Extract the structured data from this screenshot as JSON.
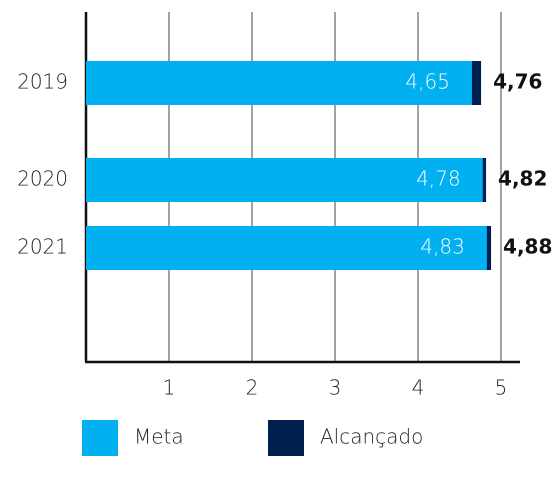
{
  "chart_data": {
    "type": "bar",
    "orientation": "horizontal",
    "categories": [
      "2019",
      "2020",
      "2021"
    ],
    "series": [
      {
        "name": "Meta",
        "color": "#00b0f0",
        "values": [
          4.65,
          4.78,
          4.83
        ],
        "value_labels": [
          "4,65",
          "4,78",
          "4,83"
        ]
      },
      {
        "name": "Alcançado",
        "color": "#002050",
        "values": [
          4.76,
          4.82,
          4.88
        ],
        "value_labels": [
          "4,76",
          "4,82",
          "4,88"
        ]
      }
    ],
    "xlim": [
      0,
      5
    ],
    "xticks": [
      1,
      2,
      3,
      4,
      5
    ],
    "grid": true,
    "legend": "bottom"
  }
}
